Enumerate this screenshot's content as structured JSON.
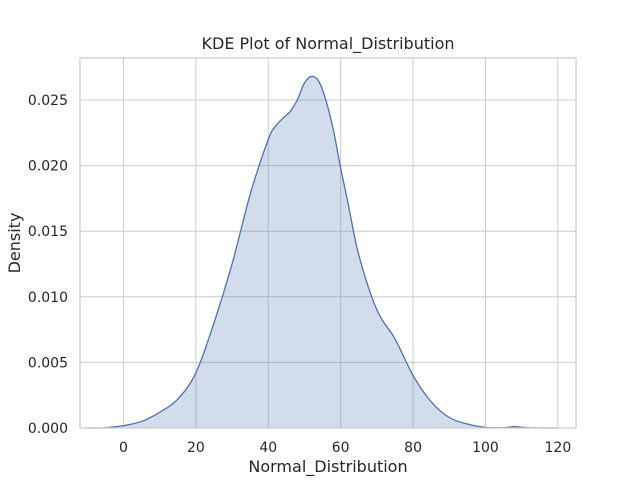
{
  "chart_data": {
    "type": "area",
    "title": "KDE Plot of Normal_Distribution",
    "xlabel": "Normal_Distribution",
    "ylabel": "Density",
    "xlim": [
      -12,
      125
    ],
    "ylim": [
      0,
      0.0282
    ],
    "xticks": [
      0,
      20,
      40,
      60,
      80,
      100,
      120
    ],
    "yticks": [
      0.0,
      0.005,
      0.01,
      0.015,
      0.02,
      0.025
    ],
    "ytick_labels": [
      "0.000",
      "0.005",
      "0.010",
      "0.015",
      "0.020",
      "0.025"
    ],
    "grid": true,
    "series": [
      {
        "color": "#4c72b0",
        "fill_color": "#4c72b0",
        "fill_opacity": 0.25,
        "x": [
          -10,
          -5,
          0,
          5,
          10,
          15,
          20,
          25,
          30,
          35,
          40,
          42,
          44,
          46,
          48,
          50,
          52,
          54,
          56,
          58,
          60,
          62,
          65,
          70,
          75,
          80,
          85,
          90,
          95,
          100,
          105,
          108,
          112,
          120
        ],
        "y": [
          0.0,
          2e-05,
          0.00018,
          0.0005,
          0.0012,
          0.0022,
          0.0042,
          0.008,
          0.0125,
          0.0178,
          0.022,
          0.023,
          0.0236,
          0.0241,
          0.025,
          0.0263,
          0.0268,
          0.0264,
          0.0249,
          0.0227,
          0.0198,
          0.0172,
          0.0132,
          0.009,
          0.0068,
          0.004,
          0.002,
          0.0008,
          0.0003,
          5e-05,
          2e-05,
          0.0001,
          2e-05,
          0.0
        ]
      }
    ]
  }
}
